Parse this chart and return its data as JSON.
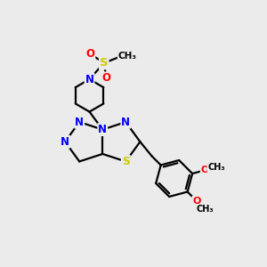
{
  "background_color": "#ebebeb",
  "bond_color": "#000000",
  "n_color": "#0000ff",
  "s_color": "#cccc00",
  "o_color": "#ff0000",
  "line_width": 1.6,
  "figsize": [
    3.0,
    3.0
  ],
  "dpi": 100,
  "xlim": [
    0,
    10
  ],
  "ylim": [
    0,
    10
  ]
}
